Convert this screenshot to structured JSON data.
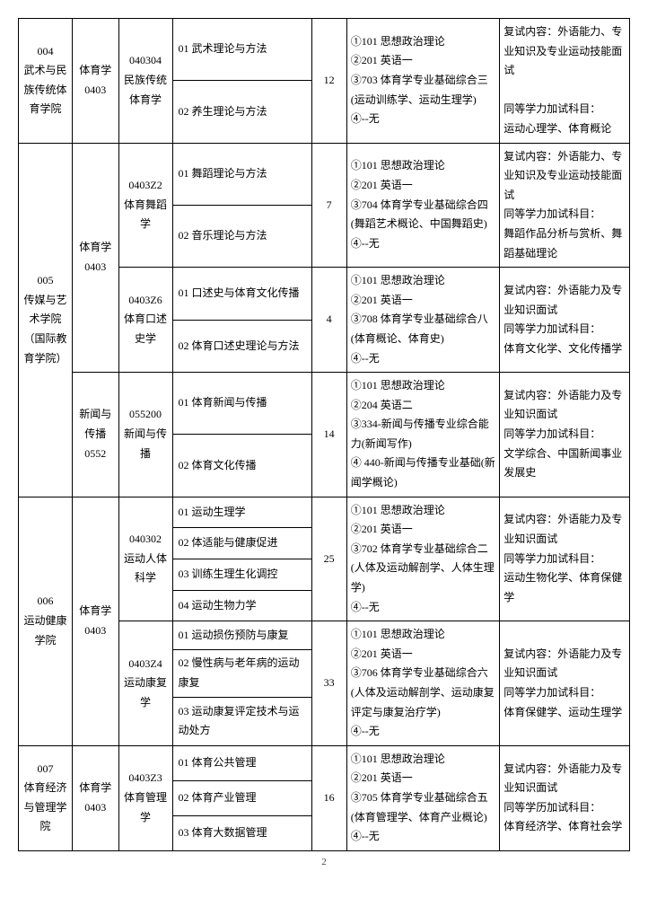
{
  "groups": [
    {
      "college": "004\n武术与民族传统体育学院",
      "cats": [
        {
          "category": "体育学\n0403",
          "majors": [
            {
              "major": "040304\n民族传统体育学",
              "quota": "12",
              "exam": "①101 思想政治理论\n②201 英语一\n③703 体育学专业基础综合三(运动训练学、运动生理学)\n④--无",
              "notes": "复试内容：外语能力、专业知识及专业运动技能面试\n\n同等学力加试科目：\n运动心理学、体育概论",
              "directions": [
                "01 武术理论与方法",
                "02 养生理论与方法"
              ]
            }
          ]
        }
      ]
    },
    {
      "college": "005\n传媒与艺术学院（国际教育学院）",
      "cats": [
        {
          "category": "体育学\n0403",
          "majors": [
            {
              "major": "0403Z2\n体育舞蹈学",
              "quota": "7",
              "exam": "①101 思想政治理论\n②201 英语一\n③704 体育学专业基础综合四(舞蹈艺术概论、中国舞蹈史)\n④--无",
              "notes": "复试内容：外语能力、专业知识及专业运动技能面试\n同等学力加试科目：\n舞蹈作品分析与赏析、舞蹈基础理论",
              "directions": [
                "01 舞蹈理论与方法",
                "02 音乐理论与方法"
              ]
            },
            {
              "major": "0403Z6\n体育口述史学",
              "quota": "4",
              "exam": "①101 思想政治理论\n②201 英语一\n③708 体育学专业基础综合八(体育概论、体育史)\n④--无",
              "notes": "复试内容：外语能力及专业知识面试\n同等学力加试科目：\n体育文化学、文化传播学",
              "directions": [
                "01 口述史与体育文化传播",
                "02 体育口述史理论与方法"
              ]
            }
          ]
        },
        {
          "category": "新闻与传播\n0552",
          "majors": [
            {
              "major": "055200\n新闻与传播",
              "quota": "14",
              "exam": "①101 思想政治理论\n②204 英语二\n③334-新闻与传播专业综合能力(新闻写作)\n④ 440-新闻与传播专业基础(新闻学概论)",
              "notes": "复试内容：外语能力及专业知识面试\n同等学力加试科目：\n文学综合、中国新闻事业发展史",
              "directions": [
                "01 体育新闻与传播",
                "02 体育文化传播"
              ]
            }
          ]
        }
      ]
    },
    {
      "college": "006\n运动健康学院",
      "cats": [
        {
          "category": "体育学\n0403",
          "majors": [
            {
              "major": "040302\n运动人体科学",
              "quota": "25",
              "exam": "①101 思想政治理论\n②201 英语一\n③702 体育学专业基础综合二(人体及运动解剖学、人体生理学)\n④--无",
              "notes": "复试内容：外语能力及专业知识面试\n同等学力加试科目：\n运动生物化学、体育保健学",
              "directions": [
                "01 运动生理学",
                "02 体适能与健康促进",
                "03 训练生理生化调控",
                "04 运动生物力学"
              ]
            },
            {
              "major": "0403Z4\n运动康复学",
              "quota": "33",
              "exam": "①101 思想政治理论\n②201 英语一\n③706 体育学专业基础综合六(人体及运动解剖学、运动康复评定与康复治疗学)\n④--无",
              "notes": "复试内容：外语能力及专业知识面试\n同等学力加试科目：\n体育保健学、运动生理学",
              "directions": [
                "01 运动损伤预防与康复",
                "02 慢性病与老年病的运动康复",
                "03 运动康复评定技术与运动处方"
              ]
            }
          ]
        }
      ]
    },
    {
      "college": "007\n体育经济与管理学院",
      "cats": [
        {
          "category": "体育学\n0403",
          "majors": [
            {
              "major": "0403Z3\n体育管理学",
              "quota": "16",
              "exam": "①101 思想政治理论\n②201 英语一\n③705 体育学专业基础综合五(体育管理学、体育产业概论)\n④--无",
              "notes": "复试内容：外语能力及专业知识面试\n同等学历加试科目：\n体育经济学、体育社会学",
              "directions": [
                "01 体育公共管理",
                "02 体育产业管理",
                "03 体育大数据管理"
              ]
            }
          ]
        }
      ]
    }
  ],
  "pageNum": "2"
}
